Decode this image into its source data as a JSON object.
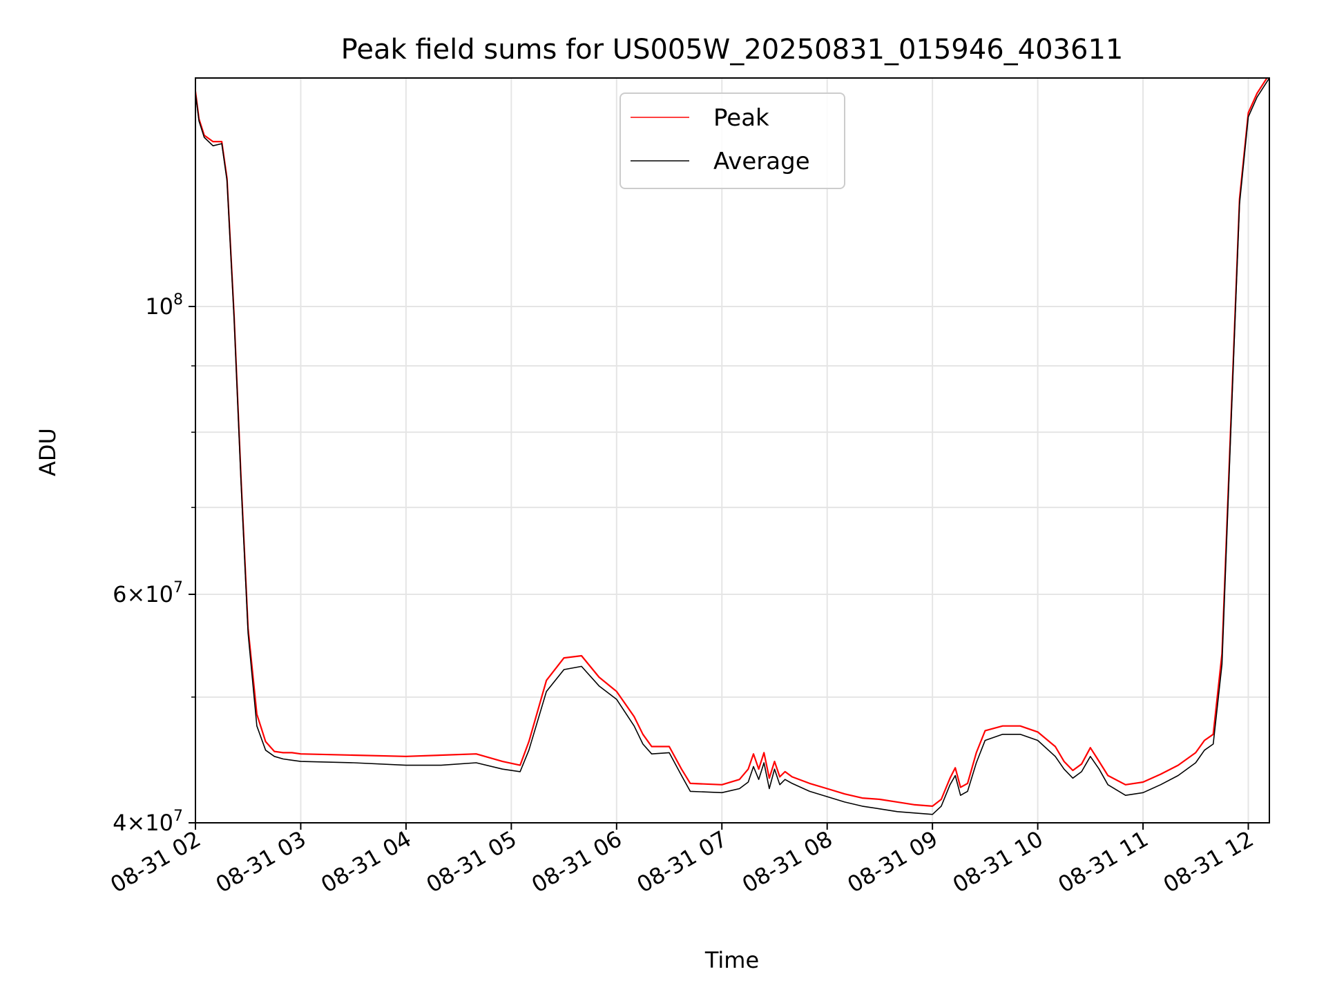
{
  "chart_data": {
    "type": "line",
    "title": "Peak field sums for US005W_20250831_015946_403611",
    "xlabel": "Time",
    "ylabel": "ADU",
    "y_scale": "log",
    "ylim": [
      40000000,
      150000000
    ],
    "xlim": [
      "2025-08-31 02:00",
      "2025-08-31 12:12"
    ],
    "grid": true,
    "legend_position": "upper center",
    "x_ticks": [
      {
        "t": "2025-08-31 02:00",
        "label": "08-31 02"
      },
      {
        "t": "2025-08-31 03:00",
        "label": "08-31 03"
      },
      {
        "t": "2025-08-31 04:00",
        "label": "08-31 04"
      },
      {
        "t": "2025-08-31 05:00",
        "label": "08-31 05"
      },
      {
        "t": "2025-08-31 06:00",
        "label": "08-31 06"
      },
      {
        "t": "2025-08-31 07:00",
        "label": "08-31 07"
      },
      {
        "t": "2025-08-31 08:00",
        "label": "08-31 08"
      },
      {
        "t": "2025-08-31 09:00",
        "label": "08-31 09"
      },
      {
        "t": "2025-08-31 10:00",
        "label": "08-31 10"
      },
      {
        "t": "2025-08-31 11:00",
        "label": "08-31 11"
      },
      {
        "t": "2025-08-31 12:00",
        "label": "08-31 12"
      }
    ],
    "y_ticks_major": [
      {
        "value": 40000000,
        "mantissa": "4",
        "exponent": "7"
      },
      {
        "value": 60000000,
        "mantissa": "6",
        "exponent": "7"
      },
      {
        "value": 100000000,
        "mantissa": "",
        "exponent": "8"
      }
    ],
    "y_ticks_minor": [
      50000000,
      70000000,
      80000000,
      90000000
    ],
    "series": [
      {
        "name": "Average",
        "color": "#000000",
        "x": [
          "2025-08-31 02:00",
          "2025-08-31 02:02",
          "2025-08-31 02:05",
          "2025-08-31 02:10",
          "2025-08-31 02:15",
          "2025-08-31 02:18",
          "2025-08-31 02:22",
          "2025-08-31 02:26",
          "2025-08-31 02:30",
          "2025-08-31 02:35",
          "2025-08-31 02:40",
          "2025-08-31 02:45",
          "2025-08-31 02:50",
          "2025-08-31 02:55",
          "2025-08-31 03:00",
          "2025-08-31 03:30",
          "2025-08-31 04:00",
          "2025-08-31 04:20",
          "2025-08-31 04:40",
          "2025-08-31 04:55",
          "2025-08-31 05:05",
          "2025-08-31 05:10",
          "2025-08-31 05:20",
          "2025-08-31 05:30",
          "2025-08-31 05:40",
          "2025-08-31 05:50",
          "2025-08-31 06:00",
          "2025-08-31 06:10",
          "2025-08-31 06:15",
          "2025-08-31 06:20",
          "2025-08-31 06:30",
          "2025-08-31 06:37",
          "2025-08-31 06:42",
          "2025-08-31 07:00",
          "2025-08-31 07:10",
          "2025-08-31 07:15",
          "2025-08-31 07:18",
          "2025-08-31 07:21",
          "2025-08-31 07:24",
          "2025-08-31 07:27",
          "2025-08-31 07:30",
          "2025-08-31 07:33",
          "2025-08-31 07:36",
          "2025-08-31 07:40",
          "2025-08-31 07:50",
          "2025-08-31 08:00",
          "2025-08-31 08:10",
          "2025-08-31 08:20",
          "2025-08-31 08:30",
          "2025-08-31 08:40",
          "2025-08-31 08:50",
          "2025-08-31 09:00",
          "2025-08-31 09:05",
          "2025-08-31 09:10",
          "2025-08-31 09:13",
          "2025-08-31 09:16",
          "2025-08-31 09:20",
          "2025-08-31 09:25",
          "2025-08-31 09:30",
          "2025-08-31 09:40",
          "2025-08-31 09:50",
          "2025-08-31 10:00",
          "2025-08-31 10:10",
          "2025-08-31 10:15",
          "2025-08-31 10:20",
          "2025-08-31 10:25",
          "2025-08-31 10:30",
          "2025-08-31 10:35",
          "2025-08-31 10:40",
          "2025-08-31 10:50",
          "2025-08-31 11:00",
          "2025-08-31 11:10",
          "2025-08-31 11:20",
          "2025-08-31 11:30",
          "2025-08-31 11:35",
          "2025-08-31 11:40",
          "2025-08-31 11:45",
          "2025-08-31 11:50",
          "2025-08-31 11:55",
          "2025-08-31 12:00",
          "2025-08-31 12:05",
          "2025-08-31 12:12"
        ],
        "y": [
          146000000,
          139000000,
          135000000,
          133000000,
          133500000,
          125000000,
          98000000,
          73000000,
          56000000,
          47500000,
          45500000,
          45000000,
          44800000,
          44700000,
          44600000,
          44500000,
          44300000,
          44300000,
          44500000,
          44000000,
          43800000,
          45500000,
          50500000,
          52500000,
          52800000,
          51000000,
          49800000,
          47500000,
          46000000,
          45200000,
          45300000,
          43500000,
          42300000,
          42200000,
          42500000,
          43000000,
          44200000,
          43200000,
          44500000,
          42500000,
          44000000,
          42800000,
          43200000,
          42900000,
          42300000,
          41900000,
          41500000,
          41200000,
          41000000,
          40800000,
          40700000,
          40600000,
          41200000,
          42800000,
          43500000,
          42000000,
          42300000,
          44500000,
          46300000,
          46800000,
          46800000,
          46300000,
          45000000,
          44000000,
          43300000,
          43800000,
          45000000,
          44000000,
          42800000,
          42000000,
          42200000,
          42800000,
          43500000,
          44500000,
          45500000,
          46000000,
          53000000,
          80000000,
          120000000,
          140000000,
          145000000,
          150000000
        ]
      },
      {
        "name": "Peak",
        "color": "#ff0000",
        "x": [
          "2025-08-31 02:00",
          "2025-08-31 02:02",
          "2025-08-31 02:05",
          "2025-08-31 02:10",
          "2025-08-31 02:15",
          "2025-08-31 02:18",
          "2025-08-31 02:22",
          "2025-08-31 02:26",
          "2025-08-31 02:30",
          "2025-08-31 02:35",
          "2025-08-31 02:40",
          "2025-08-31 02:45",
          "2025-08-31 02:50",
          "2025-08-31 02:55",
          "2025-08-31 03:00",
          "2025-08-31 03:30",
          "2025-08-31 04:00",
          "2025-08-31 04:20",
          "2025-08-31 04:40",
          "2025-08-31 04:55",
          "2025-08-31 05:05",
          "2025-08-31 05:10",
          "2025-08-31 05:20",
          "2025-08-31 05:30",
          "2025-08-31 05:40",
          "2025-08-31 05:50",
          "2025-08-31 06:00",
          "2025-08-31 06:10",
          "2025-08-31 06:15",
          "2025-08-31 06:20",
          "2025-08-31 06:30",
          "2025-08-31 06:37",
          "2025-08-31 06:42",
          "2025-08-31 07:00",
          "2025-08-31 07:10",
          "2025-08-31 07:15",
          "2025-08-31 07:18",
          "2025-08-31 07:21",
          "2025-08-31 07:24",
          "2025-08-31 07:27",
          "2025-08-31 07:30",
          "2025-08-31 07:33",
          "2025-08-31 07:36",
          "2025-08-31 07:40",
          "2025-08-31 07:50",
          "2025-08-31 08:00",
          "2025-08-31 08:10",
          "2025-08-31 08:20",
          "2025-08-31 08:30",
          "2025-08-31 08:40",
          "2025-08-31 08:50",
          "2025-08-31 09:00",
          "2025-08-31 09:05",
          "2025-08-31 09:10",
          "2025-08-31 09:13",
          "2025-08-31 09:16",
          "2025-08-31 09:20",
          "2025-08-31 09:25",
          "2025-08-31 09:30",
          "2025-08-31 09:40",
          "2025-08-31 09:50",
          "2025-08-31 10:00",
          "2025-08-31 10:10",
          "2025-08-31 10:15",
          "2025-08-31 10:20",
          "2025-08-31 10:25",
          "2025-08-31 10:30",
          "2025-08-31 10:35",
          "2025-08-31 10:40",
          "2025-08-31 10:50",
          "2025-08-31 11:00",
          "2025-08-31 11:10",
          "2025-08-31 11:20",
          "2025-08-31 11:30",
          "2025-08-31 11:35",
          "2025-08-31 11:40",
          "2025-08-31 11:45",
          "2025-08-31 11:50",
          "2025-08-31 11:55",
          "2025-08-31 12:00",
          "2025-08-31 12:05",
          "2025-08-31 12:12"
        ],
        "y": [
          146500000,
          139500000,
          135500000,
          134000000,
          134000000,
          125500000,
          98500000,
          73500000,
          56500000,
          48500000,
          46200000,
          45400000,
          45300000,
          45300000,
          45200000,
          45100000,
          45000000,
          45100000,
          45200000,
          44600000,
          44300000,
          46200000,
          51500000,
          53600000,
          53800000,
          51800000,
          50500000,
          48300000,
          46800000,
          45800000,
          45800000,
          44000000,
          42900000,
          42800000,
          43200000,
          44000000,
          45200000,
          44000000,
          45300000,
          43300000,
          44600000,
          43400000,
          43800000,
          43400000,
          42900000,
          42500000,
          42100000,
          41800000,
          41700000,
          41500000,
          41300000,
          41200000,
          41700000,
          43300000,
          44100000,
          42600000,
          42900000,
          45300000,
          47100000,
          47500000,
          47500000,
          47000000,
          45800000,
          44600000,
          43900000,
          44400000,
          45700000,
          44600000,
          43500000,
          42800000,
          43000000,
          43600000,
          44300000,
          45300000,
          46300000,
          46800000,
          54000000,
          81000000,
          121000000,
          141000000,
          146000000,
          151000000
        ]
      }
    ]
  }
}
